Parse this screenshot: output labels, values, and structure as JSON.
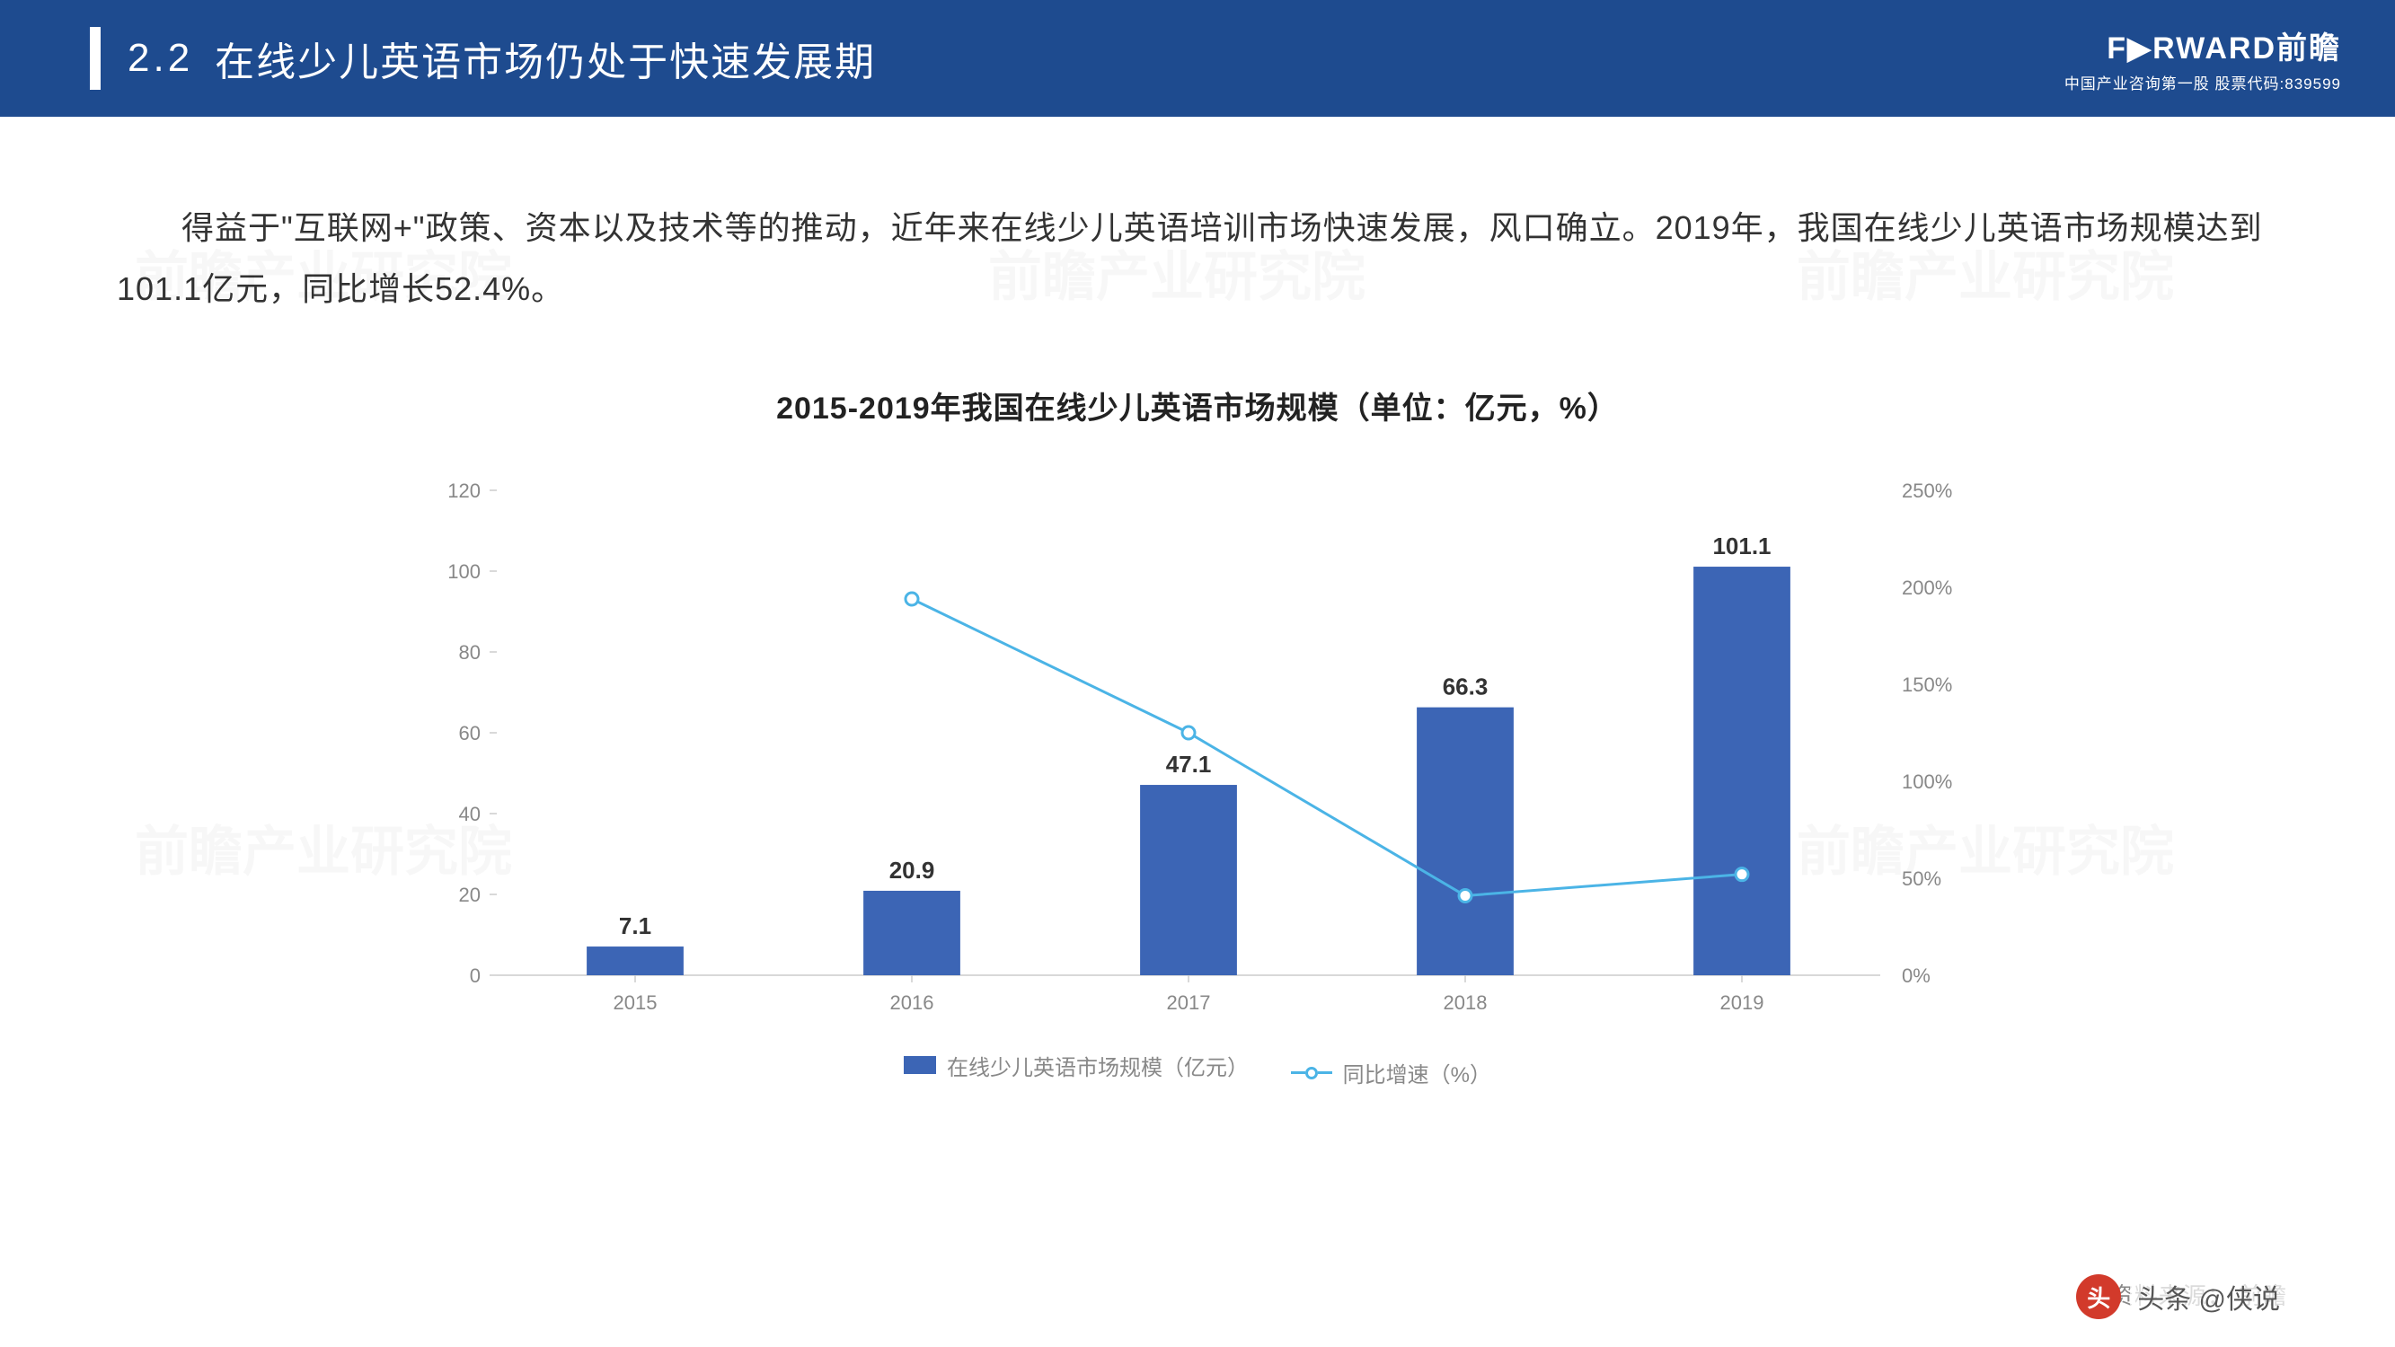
{
  "header": {
    "section_number": "2.2",
    "section_title": "在线少儿英语市场仍处于快速发展期",
    "logo_main": "F▶RWARD前瞻",
    "logo_sub": "中国产业咨询第一股  股票代码:839599"
  },
  "body_text": "得益于\"互联网+\"政策、资本以及技术等的推动，近年来在线少儿英语培训市场快速发展，风口确立。2019年，我国在线少儿英语市场规模达到101.1亿元，同比增长52.4%。",
  "chart": {
    "title": "2015-2019年我国在线少儿英语市场规模（单位：亿元，%）",
    "type": "bar_line_combo",
    "categories": [
      "2015",
      "2016",
      "2017",
      "2018",
      "2019"
    ],
    "bar_series": {
      "name": "在线少儿英语市场规模（亿元）",
      "values": [
        7.1,
        20.9,
        47.1,
        66.3,
        101.1
      ],
      "color": "#3c65b5"
    },
    "line_series": {
      "name": "同比增速（%）",
      "values": [
        null,
        194,
        125,
        41,
        52
      ],
      "color": "#4bb4e6",
      "marker_fill": "#ffffff",
      "marker_stroke": "#4bb4e6",
      "marker_radius": 7,
      "line_width": 3
    },
    "y_left": {
      "min": 0,
      "max": 120,
      "step": 20,
      "label_color": "#888888"
    },
    "y_right": {
      "min": 0,
      "max": 250,
      "step": 50,
      "suffix": "%",
      "label_color": "#888888"
    },
    "grid_color": "#d9d9d9",
    "axis_color": "#cccccc",
    "x_label_color": "#888888",
    "bar_label_color": "#333333",
    "bar_width_ratio": 0.35,
    "background": "#ffffff",
    "title_fontsize": 34,
    "tick_fontsize": 22,
    "bar_label_fontsize": 26
  },
  "legend": {
    "bar": "在线少儿英语市场规模（亿元）",
    "line": "同比增速（%）"
  },
  "source_label": "资料来源：    前瞻",
  "attribution": "头条 @侠说"
}
